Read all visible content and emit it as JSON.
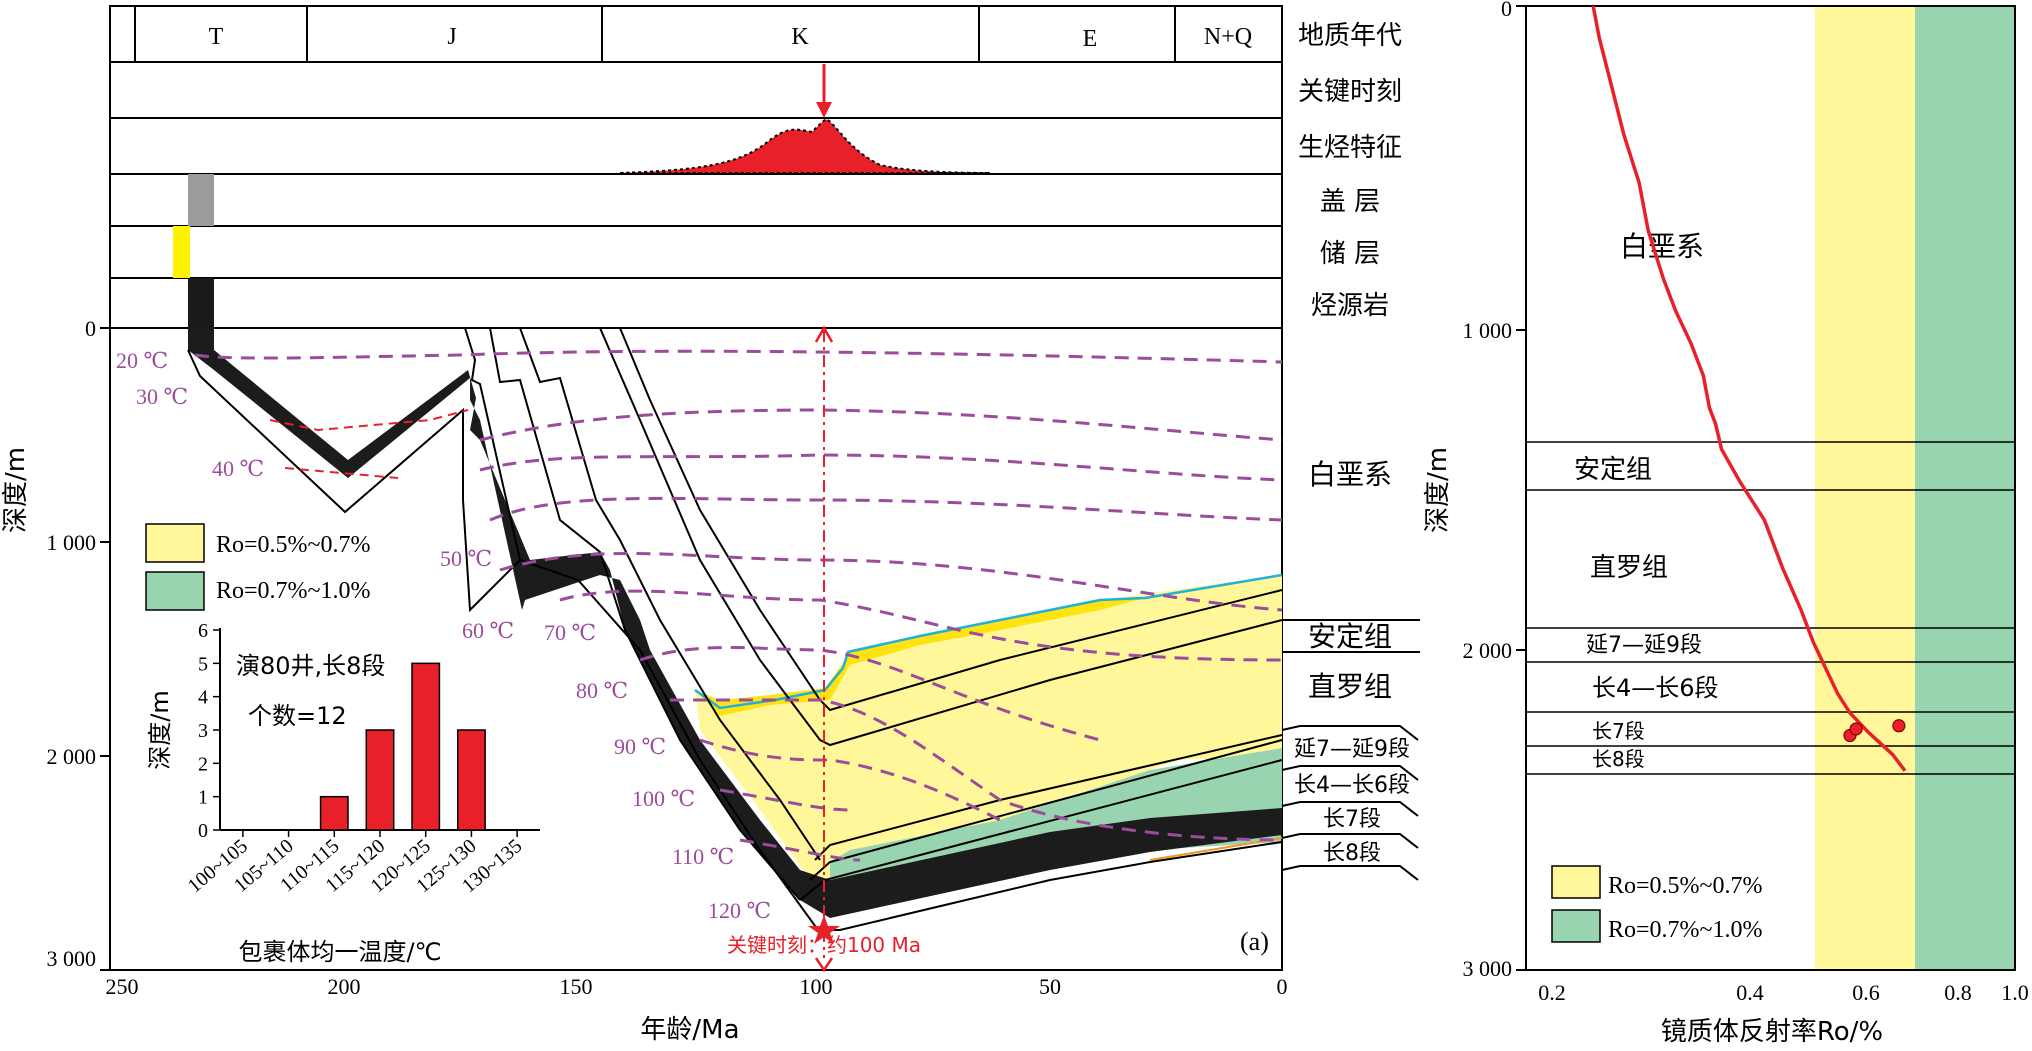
{
  "left_panel": {
    "period_row": {
      "periods": [
        "T",
        "J",
        "K",
        "E",
        "N+Q"
      ]
    },
    "row_labels": {
      "age": "地质年代",
      "key_moment": "关键时刻",
      "generation": "生烃特征",
      "cap": "盖 层",
      "reservoir": "储 层",
      "source": "烃源岩"
    },
    "right_column_labels": {
      "cretaceous": "白垩系",
      "anding": "安定组",
      "zhiluo": "直罗组",
      "yan7_9": "延7—延9段",
      "chang4_6": "长4—长6段",
      "chang7": "长7段",
      "chang8": "长8段"
    },
    "axes": {
      "x_label": "年龄/Ma",
      "y_label": "深度/m",
      "x_ticks": [
        "250",
        "200",
        "150",
        "100",
        "50",
        "0"
      ],
      "y_ticks": [
        "0",
        "1 000",
        "2 000",
        "3 000"
      ],
      "x_range": [
        250,
        0
      ],
      "y_range": [
        0,
        3000
      ]
    },
    "isotherm_labels": [
      "20 ℃",
      "30 ℃",
      "40 ℃",
      "50 ℃",
      "60 ℃",
      "70 ℃",
      "80 ℃",
      "90 ℃",
      "100 ℃",
      "110 ℃",
      "120 ℃"
    ],
    "critical_moment_label": "关键时刻：约100 Ma",
    "panel_tag": "(a)",
    "legend": [
      {
        "label": "Ro=0.5%~0.7%",
        "color": "#fff799"
      },
      {
        "label": "Ro=0.7%~1.0%",
        "color": "#99d4b0"
      }
    ],
    "inset": {
      "title": "演80井,长8段",
      "count": "个数=12",
      "ylabel": "深度/m",
      "xlabel": "包裹体均一温度/℃",
      "y_ticks": [
        "0",
        "1",
        "2",
        "3",
        "4",
        "5",
        "6"
      ]
    }
  },
  "right_panel": {
    "strata_labels": [
      "白垩系",
      "安定组",
      "直罗组",
      "延7—延9段",
      "长4—长6段",
      "长7段",
      "长8段"
    ],
    "ylabel": "深度/m",
    "xlabel": "镜质体反射率Ro/%",
    "y_ticks": [
      "0",
      "1 000",
      "2 000",
      "3 000"
    ],
    "x_ticks": [
      "0.2",
      "0.4",
      "0.6",
      "0.8",
      "1.0"
    ],
    "legend": [
      {
        "label": "Ro=0.5%~0.7%",
        "color": "#fff799"
      },
      {
        "label": "Ro=0.7%~1.0%",
        "color": "#99d4b0"
      }
    ]
  },
  "chart_data": [
    {
      "type": "bar",
      "title": "演80井,长8段",
      "subtitle": "个数=12",
      "categories": [
        "100~105",
        "105~110",
        "110~115",
        "115~120",
        "120~125",
        "125~130",
        "130~135"
      ],
      "values": [
        0,
        0,
        1,
        3,
        5,
        3,
        0
      ],
      "xlabel": "包裹体均一温度/℃",
      "ylabel": "深度/m",
      "ylim": [
        0,
        6
      ]
    },
    {
      "type": "line",
      "xlabel": "镜质体反射率Ro/%",
      "ylabel": "深度/m",
      "xlim": [
        0.2,
        1.0
      ],
      "ylim": [
        0,
        3000
      ],
      "series": [
        {
          "x": [
            0.31,
            0.32,
            0.34,
            0.36,
            0.385,
            0.4,
            0.425,
            0.445,
            0.47,
            0.49,
            0.5,
            0.51,
            0.52,
            0.55,
            0.59,
            0.62,
            0.65,
            0.67,
            0.69,
            0.71,
            0.73,
            0.76,
            0.8,
            0.82
          ],
          "y": [
            0,
            100,
            250,
            400,
            550,
            700,
            850,
            950,
            1050,
            1150,
            1250,
            1300,
            1380,
            1480,
            1600,
            1750,
            1880,
            1980,
            2060,
            2140,
            2200,
            2260,
            2330,
            2380
          ]
        }
      ],
      "points": [
        {
          "x": 0.73,
          "y": 2270
        },
        {
          "x": 0.74,
          "y": 2250
        },
        {
          "x": 0.81,
          "y": 2240
        }
      ]
    }
  ]
}
